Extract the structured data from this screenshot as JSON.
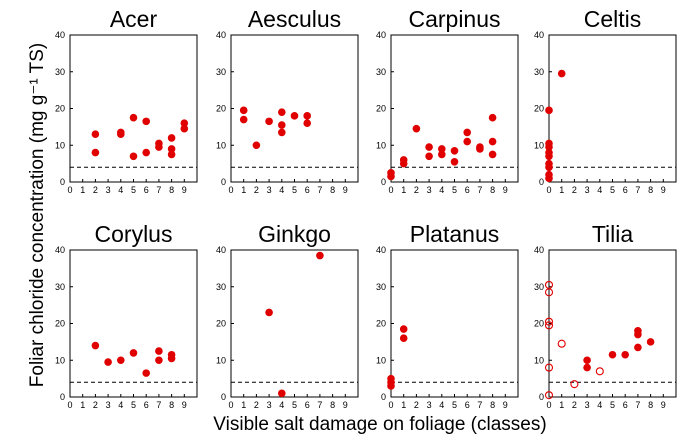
{
  "figure": {
    "ylabel": "Foliar chloride concentration (mg g⁻¹ TS)",
    "xlabel": "Visible salt damage on foliage (classes)"
  },
  "chart_data": [
    {
      "type": "scatter",
      "title": "Acer",
      "xlim": [
        0,
        10
      ],
      "ylim": [
        0,
        40
      ],
      "xticks": [
        "0",
        "1",
        "2",
        "3",
        "4",
        "5",
        "6",
        "7",
        "8",
        "9"
      ],
      "yticks": [
        "0",
        "10",
        "20",
        "30",
        "40"
      ],
      "threshold": 4,
      "marker_color": "#e00000",
      "points": [
        [
          2,
          13
        ],
        [
          2,
          8
        ],
        [
          4,
          13
        ],
        [
          4,
          13.5
        ],
        [
          5,
          17.5
        ],
        [
          5,
          7
        ],
        [
          6,
          16.5
        ],
        [
          6,
          8
        ],
        [
          7,
          10.5
        ],
        [
          7,
          9.5
        ],
        [
          8,
          12
        ],
        [
          8,
          9
        ],
        [
          8,
          7.5
        ],
        [
          9,
          16
        ],
        [
          9,
          14.5
        ]
      ],
      "open_points": []
    },
    {
      "type": "scatter",
      "title": "Aesculus",
      "xlim": [
        0,
        10
      ],
      "ylim": [
        0,
        40
      ],
      "xticks": [
        "0",
        "1",
        "2",
        "3",
        "4",
        "5",
        "6",
        "7",
        "8",
        "9"
      ],
      "yticks": [
        "0",
        "10",
        "20",
        "30",
        "40"
      ],
      "threshold": 4,
      "marker_color": "#e00000",
      "points": [
        [
          1,
          19.5
        ],
        [
          1,
          17
        ],
        [
          2,
          10
        ],
        [
          3,
          16.5
        ],
        [
          4,
          19
        ],
        [
          4,
          15.5
        ],
        [
          4,
          13.5
        ],
        [
          5,
          18
        ],
        [
          6,
          18
        ],
        [
          6,
          16
        ]
      ],
      "open_points": []
    },
    {
      "type": "scatter",
      "title": "Carpinus",
      "xlim": [
        0,
        10
      ],
      "ylim": [
        0,
        40
      ],
      "xticks": [
        "0",
        "1",
        "2",
        "3",
        "4",
        "5",
        "6",
        "7",
        "8",
        "9"
      ],
      "yticks": [
        "0",
        "10",
        "20",
        "30",
        "40"
      ],
      "threshold": 4,
      "marker_color": "#e00000",
      "points": [
        [
          0,
          2.5
        ],
        [
          0,
          1.5
        ],
        [
          1,
          6
        ],
        [
          1,
          5
        ],
        [
          2,
          14.5
        ],
        [
          3,
          9.5
        ],
        [
          3,
          7
        ],
        [
          4,
          9
        ],
        [
          4,
          7.5
        ],
        [
          5,
          8.5
        ],
        [
          5,
          5.5
        ],
        [
          6,
          13.5
        ],
        [
          6,
          11
        ],
        [
          7,
          9.5
        ],
        [
          7,
          9
        ],
        [
          8,
          17.5
        ],
        [
          8,
          11
        ],
        [
          8,
          7.5
        ]
      ],
      "open_points": []
    },
    {
      "type": "scatter",
      "title": "Celtis",
      "xlim": [
        0,
        10
      ],
      "ylim": [
        0,
        40
      ],
      "xticks": [
        "0",
        "1",
        "2",
        "3",
        "4",
        "5",
        "6",
        "7",
        "8",
        "9"
      ],
      "yticks": [
        "0",
        "10",
        "20",
        "30",
        "40"
      ],
      "threshold": 4,
      "marker_color": "#e00000",
      "points": [
        [
          1,
          29.5
        ],
        [
          0,
          19.5
        ],
        [
          0,
          10.5
        ],
        [
          0,
          9.5
        ],
        [
          0,
          8
        ],
        [
          0,
          7
        ],
        [
          0,
          5
        ],
        [
          0,
          4
        ],
        [
          0,
          2
        ],
        [
          0,
          1
        ]
      ],
      "open_points": []
    },
    {
      "type": "scatter",
      "title": "Corylus",
      "xlim": [
        0,
        10
      ],
      "ylim": [
        0,
        40
      ],
      "xticks": [
        "0",
        "1",
        "2",
        "3",
        "4",
        "5",
        "6",
        "7",
        "8",
        "9"
      ],
      "yticks": [
        "0",
        "10",
        "20",
        "30",
        "40"
      ],
      "threshold": 4,
      "marker_color": "#e00000",
      "points": [
        [
          2,
          14
        ],
        [
          3,
          9.5
        ],
        [
          4,
          10
        ],
        [
          5,
          12
        ],
        [
          6,
          6.5
        ],
        [
          7,
          12.5
        ],
        [
          7,
          10
        ],
        [
          8,
          11.5
        ],
        [
          8,
          10.5
        ]
      ],
      "open_points": []
    },
    {
      "type": "scatter",
      "title": "Ginkgo",
      "xlim": [
        0,
        10
      ],
      "ylim": [
        0,
        40
      ],
      "xticks": [
        "0",
        "1",
        "2",
        "3",
        "4",
        "5",
        "6",
        "7",
        "8",
        "9"
      ],
      "yticks": [
        "0",
        "10",
        "20",
        "30",
        "40"
      ],
      "threshold": 4,
      "marker_color": "#e00000",
      "points": [
        [
          3,
          23
        ],
        [
          4,
          1
        ],
        [
          7,
          38.5
        ]
      ],
      "open_points": []
    },
    {
      "type": "scatter",
      "title": "Platanus",
      "xlim": [
        0,
        10
      ],
      "ylim": [
        0,
        40
      ],
      "xticks": [
        "0",
        "1",
        "2",
        "3",
        "4",
        "5",
        "6",
        "7",
        "8",
        "9"
      ],
      "yticks": [
        "0",
        "10",
        "20",
        "30",
        "40"
      ],
      "threshold": 4,
      "marker_color": "#e00000",
      "points": [
        [
          1,
          18.5
        ],
        [
          1,
          16
        ],
        [
          0,
          5
        ],
        [
          0,
          4
        ],
        [
          0,
          3
        ]
      ],
      "open_points": []
    },
    {
      "type": "scatter",
      "title": "Tilia",
      "xlim": [
        0,
        10
      ],
      "ylim": [
        0,
        40
      ],
      "xticks": [
        "0",
        "1",
        "2",
        "3",
        "4",
        "5",
        "6",
        "7",
        "8",
        "9"
      ],
      "yticks": [
        "0",
        "10",
        "20",
        "30",
        "40"
      ],
      "threshold": 4,
      "marker_color": "#e00000",
      "points": [
        [
          3,
          10
        ],
        [
          3,
          8
        ],
        [
          5,
          11.5
        ],
        [
          6,
          11.5
        ],
        [
          7,
          18
        ],
        [
          7,
          17
        ],
        [
          7,
          13.5
        ],
        [
          8,
          15
        ]
      ],
      "open_points": [
        [
          0,
          30.5
        ],
        [
          0,
          28.5
        ],
        [
          0,
          20.5
        ],
        [
          0,
          19.5
        ],
        [
          0,
          8
        ],
        [
          0,
          0.5
        ],
        [
          1,
          14.5
        ],
        [
          2,
          3.5
        ],
        [
          4,
          7
        ]
      ]
    }
  ]
}
